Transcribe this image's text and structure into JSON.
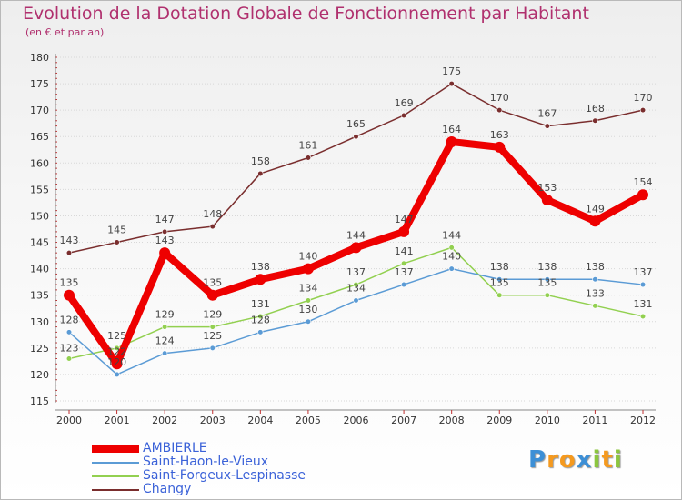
{
  "header": {
    "title": "Evolution de la Dotation Globale de Fonctionnement par Habitant",
    "subtitle": "(en € et par an)"
  },
  "chart_data": {
    "type": "line",
    "title": "Evolution de la Dotation Globale de Fonctionnement par Habitant",
    "subtitle": "(en € et par an)",
    "x": [
      "2000",
      "2001",
      "2002",
      "2003",
      "2004",
      "2005",
      "2006",
      "2007",
      "2008",
      "2009",
      "2010",
      "2011",
      "2012"
    ],
    "ylim": [
      115,
      180
    ],
    "yticks": [
      115,
      120,
      125,
      130,
      135,
      140,
      145,
      150,
      155,
      160,
      165,
      170,
      175,
      180
    ],
    "grid": "horizontal",
    "legend": "bottom-left",
    "series": [
      {
        "name": "AMBIERLE",
        "color": "#ee0000",
        "values": [
          135,
          122,
          143,
          135,
          138,
          140,
          144,
          147,
          164,
          163,
          153,
          149,
          154
        ]
      },
      {
        "name": "Saint-Haon-le-Vieux",
        "color": "#5b9bd5",
        "values": [
          128,
          120,
          124,
          125,
          128,
          130,
          134,
          137,
          140,
          138,
          138,
          138,
          137
        ]
      },
      {
        "name": "Saint-Forgeux-Lespinasse",
        "color": "#92d050",
        "values": [
          123,
          125,
          129,
          129,
          131,
          134,
          137,
          141,
          144,
          135,
          135,
          133,
          131
        ]
      },
      {
        "name": "Changy",
        "color": "#7a2e2e",
        "values": [
          143,
          145,
          147,
          148,
          158,
          161,
          165,
          169,
          175,
          170,
          167,
          168,
          170
        ]
      }
    ]
  },
  "logo": {
    "text": "Proxiti",
    "letters": [
      {
        "ch": "P",
        "color": "#3c8fd6"
      },
      {
        "ch": "r",
        "color": "#f59a1f"
      },
      {
        "ch": "o",
        "color": "#f59a1f"
      },
      {
        "ch": "x",
        "color": "#3c8fd6"
      },
      {
        "ch": "i",
        "color": "#8cc63f"
      },
      {
        "ch": "t",
        "color": "#f59a1f"
      },
      {
        "ch": "i",
        "color": "#8cc63f"
      }
    ]
  }
}
